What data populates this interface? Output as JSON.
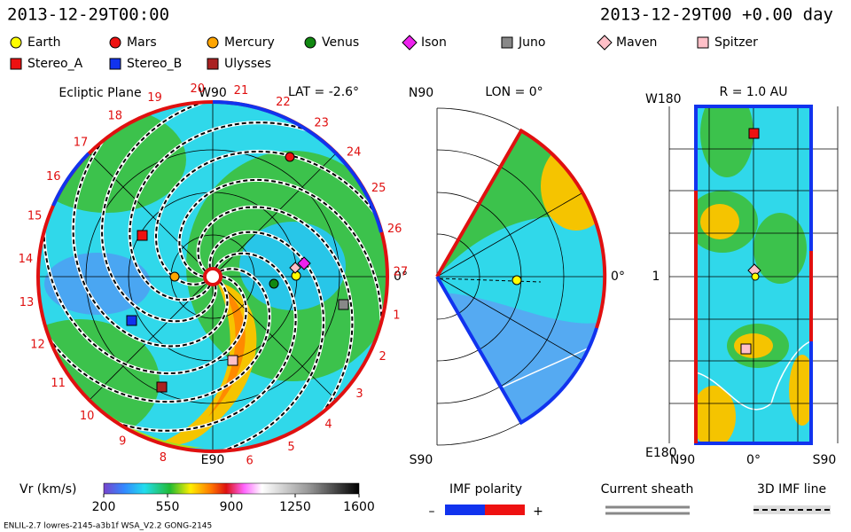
{
  "header": {
    "timestamp": "2013-12-29T00:00",
    "model_time": "2013-12-29T00 +0.00 day"
  },
  "legend": [
    {
      "name": "Earth",
      "color": "#ffff00",
      "shape": "circle"
    },
    {
      "name": "Mars",
      "color": "#ee1111",
      "shape": "circle"
    },
    {
      "name": "Mercury",
      "color": "#ffa500",
      "shape": "circle"
    },
    {
      "name": "Venus",
      "color": "#118811",
      "shape": "circle"
    },
    {
      "name": "Ison",
      "color": "#ee22ee",
      "shape": "diamond"
    },
    {
      "name": "Juno",
      "color": "#888888",
      "shape": "square"
    },
    {
      "name": "Maven",
      "color": "#ffc0c8",
      "shape": "diamond"
    },
    {
      "name": "Spitzer",
      "color": "#ffc0c8",
      "shape": "square"
    },
    {
      "name": "Stereo_A",
      "color": "#ee1111",
      "shape": "square"
    },
    {
      "name": "Stereo_B",
      "color": "#1133ee",
      "shape": "square"
    },
    {
      "name": "Ulysses",
      "color": "#aa2222",
      "shape": "square"
    }
  ],
  "ecliptic": {
    "title": "Ecliptic Plane",
    "top_label": "W90",
    "latitude": "LAT = -2.6°",
    "right_label": "0°",
    "bottom_label": "E90",
    "sector_labels": [
      1,
      2,
      3,
      4,
      5,
      6,
      8,
      9,
      10,
      11,
      12,
      13,
      14,
      15,
      16,
      17,
      18,
      19,
      20,
      21,
      22,
      23,
      24,
      25,
      26,
      27
    ]
  },
  "meridional": {
    "top_label": "N90",
    "longitude": "LON = 0°",
    "right_label": "0°",
    "bottom_label": "S90"
  },
  "radial": {
    "title": "R = 1.0 AU",
    "top_label": "W180",
    "middle_label": "1",
    "bottom_label": "E180",
    "x_labels": [
      "N90",
      "0°",
      "S90"
    ]
  },
  "colorbar": {
    "title": "Vr (km/s)",
    "range": [
      200,
      1600
    ],
    "ticks": [
      200,
      550,
      900,
      1250,
      1600
    ]
  },
  "imf_polarity": {
    "title": "IMF polarity",
    "minus": "–",
    "plus": "+"
  },
  "current_sheath": "Current sheath",
  "imf_line": "3D IMF line",
  "footer": "ENLIL-2.7 lowres-2145-a3b1f WSA_V2.2 GONG-2145"
}
